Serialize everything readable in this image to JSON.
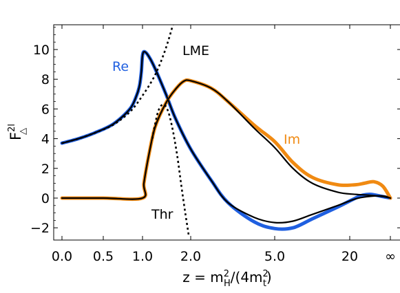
{
  "chart_data": {
    "type": "line",
    "xlabel": {
      "main": "z = m",
      "sub1": "H",
      "mid": "/(4m",
      "sub2": "t",
      "end": ")",
      "sup": "2"
    },
    "ylabel": {
      "main": "F",
      "sup": "2l",
      "sub": "△"
    },
    "ylim": [
      -2.6,
      11.8
    ],
    "x_scale": "compressed (z → ∞ at right edge)",
    "x_ticks": [
      {
        "z": 0.0,
        "label": "0.0"
      },
      {
        "z": 0.5,
        "label": "0.5"
      },
      {
        "z": 1.0,
        "label": "1.0"
      },
      {
        "z": 2.0,
        "label": "2.0"
      },
      {
        "z": 5.0,
        "label": "5.0"
      },
      {
        "z": 20,
        "label": "20"
      },
      {
        "z": "inf",
        "label": "∞"
      }
    ],
    "y_ticks": [
      -2,
      0,
      2,
      4,
      6,
      8,
      10
    ],
    "grid": false,
    "annotations": [
      {
        "text": "Re",
        "color": "#1f5fe0"
      },
      {
        "text": "Im",
        "color": "#f08a12"
      },
      {
        "text": "LME",
        "color": "#000000"
      },
      {
        "text": "Thr",
        "color": "#000000"
      }
    ],
    "series": [
      {
        "style": "thick",
        "color": "#1f5fe0",
        "points": [
          [
            0.0,
            3.7
          ],
          [
            0.2,
            4.0
          ],
          [
            0.4,
            4.4
          ],
          [
            0.6,
            5.0
          ],
          [
            0.8,
            6.0
          ],
          [
            0.9,
            6.9
          ],
          [
            0.95,
            7.6
          ],
          [
            0.98,
            8.5
          ],
          [
            1.0,
            9.6
          ],
          [
            1.03,
            9.85
          ],
          [
            1.1,
            9.5
          ],
          [
            1.2,
            8.7
          ],
          [
            1.4,
            7.0
          ],
          [
            1.6,
            5.4
          ],
          [
            2.0,
            3.3
          ],
          [
            2.5,
            1.2
          ],
          [
            3.0,
            -0.3
          ],
          [
            4.0,
            -1.6
          ],
          [
            5.0,
            -2.05
          ],
          [
            7.0,
            -2.0
          ],
          [
            10,
            -1.4
          ],
          [
            16,
            -0.6
          ],
          [
            25,
            0.0
          ],
          [
            33,
            0.2
          ],
          [
            45,
            0.25
          ],
          [
            70,
            0.1
          ],
          [
            "inf",
            0.0
          ]
        ]
      },
      {
        "style": "thick",
        "color": "#f08a12",
        "points": [
          [
            0.0,
            0.0
          ],
          [
            0.5,
            0.0
          ],
          [
            1.0,
            0.0
          ],
          [
            1.02,
            1.0
          ],
          [
            1.1,
            3.0
          ],
          [
            1.2,
            4.8
          ],
          [
            1.4,
            6.4
          ],
          [
            1.6,
            7.3
          ],
          [
            1.8,
            7.85
          ],
          [
            2.0,
            7.9
          ],
          [
            2.5,
            7.4
          ],
          [
            3.0,
            6.5
          ],
          [
            4.0,
            4.9
          ],
          [
            5.0,
            3.8
          ],
          [
            7.0,
            2.4
          ],
          [
            10,
            1.4
          ],
          [
            16,
            0.9
          ],
          [
            25,
            0.9
          ],
          [
            35,
            1.0
          ],
          [
            50,
            1.1
          ],
          [
            70,
            0.8
          ],
          [
            "inf",
            0.0
          ]
        ]
      },
      {
        "style": "thin",
        "color": "#000000",
        "points": [
          [
            0.0,
            3.7
          ],
          [
            0.2,
            4.0
          ],
          [
            0.4,
            4.4
          ],
          [
            0.6,
            5.0
          ],
          [
            0.8,
            6.0
          ],
          [
            0.9,
            6.9
          ],
          [
            0.95,
            7.6
          ],
          [
            0.98,
            8.5
          ],
          [
            1.0,
            9.6
          ],
          [
            1.03,
            9.85
          ],
          [
            1.1,
            9.5
          ],
          [
            1.2,
            8.7
          ],
          [
            1.4,
            7.0
          ],
          [
            1.6,
            5.4
          ],
          [
            2.0,
            3.3
          ],
          [
            2.5,
            1.2
          ],
          [
            3.0,
            -0.3
          ],
          [
            4.0,
            -1.3
          ],
          [
            5.0,
            -1.65
          ],
          [
            7.0,
            -1.55
          ],
          [
            10,
            -1.1
          ],
          [
            16,
            -0.5
          ],
          [
            25,
            -0.05
          ],
          [
            40,
            0.1
          ],
          [
            70,
            0.15
          ],
          [
            "inf",
            0.0
          ]
        ]
      },
      {
        "style": "thin",
        "color": "#000000",
        "points": [
          [
            0.0,
            0.0
          ],
          [
            0.5,
            0.0
          ],
          [
            1.0,
            0.0
          ],
          [
            1.02,
            1.0
          ],
          [
            1.1,
            3.0
          ],
          [
            1.2,
            4.8
          ],
          [
            1.4,
            6.4
          ],
          [
            1.6,
            7.3
          ],
          [
            1.8,
            7.85
          ],
          [
            2.0,
            7.9
          ],
          [
            2.5,
            7.4
          ],
          [
            3.0,
            6.5
          ],
          [
            4.0,
            4.7
          ],
          [
            5.0,
            3.4
          ],
          [
            7.0,
            2.0
          ],
          [
            10,
            1.0
          ],
          [
            16,
            0.4
          ],
          [
            25,
            0.25
          ],
          [
            40,
            0.2
          ],
          [
            70,
            0.1
          ],
          [
            "inf",
            0.0
          ]
        ]
      },
      {
        "style": "dotted",
        "color": "#000000",
        "points": [
          [
            0.0,
            3.7
          ],
          [
            0.2,
            4.0
          ],
          [
            0.4,
            4.4
          ],
          [
            0.6,
            4.95
          ],
          [
            0.8,
            5.8
          ],
          [
            1.0,
            6.9
          ],
          [
            1.2,
            8.3
          ],
          [
            1.4,
            10.1
          ],
          [
            1.6,
            12.2
          ]
        ]
      },
      {
        "style": "dotted",
        "color": "#000000",
        "points": [
          [
            1.15,
            4.0
          ],
          [
            1.25,
            5.8
          ],
          [
            1.35,
            6.3
          ],
          [
            1.45,
            5.8
          ],
          [
            1.55,
            4.5
          ],
          [
            1.65,
            2.8
          ],
          [
            1.75,
            0.8
          ],
          [
            1.85,
            -1.0
          ],
          [
            1.95,
            -2.6
          ]
        ]
      }
    ]
  }
}
